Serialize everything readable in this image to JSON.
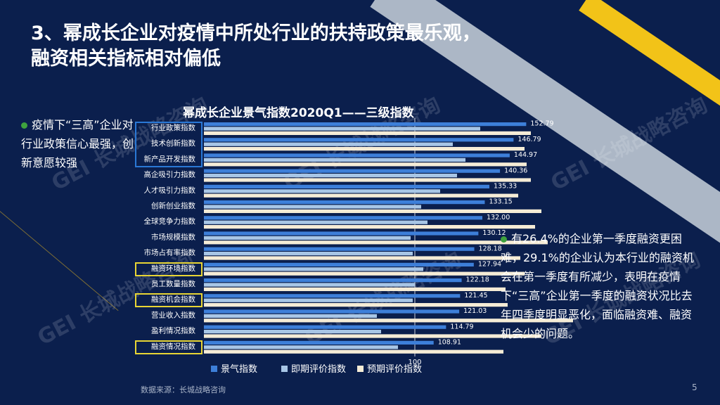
{
  "title": {
    "line1": "3、幂成长企业对疫情中所处行业的扶持政策最乐观，",
    "line2": "融资相关指标相对偏低"
  },
  "left_bullet": "疫情下“三高”企业对行业政策信心最强，创新意愿较强",
  "right_bullet": "有26.4%的企业第一季度融资更困难，29.1%的企业认为本行业的融资机会在第一季度有所减少，表明在疫情下“三高”企业第一季度的融资状况比去年四季度明显恶化，面临融资难、融资机会少的问题。",
  "source": "数据来源：长城战略咨询",
  "page_number": "5",
  "watermark": "GEI 长城战略咨询",
  "colors": {
    "background": "#0b1f4d",
    "series_1": "#3d7fd9",
    "series_2": "#a8c6e6",
    "series_3": "#f5ecd6",
    "highlight_blue": "#2a78d6",
    "highlight_yellow": "#e8d534",
    "bullet_dot": "#3ea23e"
  },
  "chart_data": {
    "type": "bar",
    "orientation": "horizontal",
    "title": "幂成长企业景气指数2020Q1——三级指数",
    "categories": [
      "行业政策指数",
      "技术创新指数",
      "新产品开发指数",
      "高企吸引力指数",
      "人才吸引力指数",
      "创新创业指数",
      "全球竞争力指数",
      "市场规模指数",
      "市场占有率指数",
      "融资环境指数",
      "员工数量指数",
      "融资机会指数",
      "营业收入指数",
      "盈利情况指数",
      "融资情况指数"
    ],
    "series": [
      {
        "name": "景气指数",
        "values": [
          152.79,
          146.79,
          144.97,
          140.36,
          135.33,
          133.15,
          132.0,
          130.12,
          128.18,
          127.94,
          122.18,
          121.45,
          121.03,
          114.79,
          108.91
        ]
      },
      {
        "name": "即期评价指数",
        "values": [
          131,
          118,
          124,
          120,
          112,
          103,
          106,
          98,
          99,
          104,
          100,
          99,
          82,
          84,
          92
        ]
      },
      {
        "name": "预期评价指数",
        "values": [
          155,
          152,
          153,
          155,
          149,
          160,
          157,
          163,
          150,
          152,
          143,
          144,
          175,
          160,
          142
        ]
      }
    ],
    "data_labels": [
      "152.79",
      "146.79",
      "144.97",
      "140.36",
      "135.33",
      "133.15",
      "132.00",
      "130.12",
      "128.18",
      "127.94",
      "122.18",
      "121.45",
      "121.03",
      "114.79",
      "108.91"
    ],
    "reference_line": {
      "value": 100,
      "label": "100"
    },
    "highlighted_blue": [
      "行业政策指数",
      "技术创新指数",
      "新产品开发指数"
    ],
    "highlighted_yellow": [
      "融资环境指数",
      "融资机会指数",
      "融资情况指数"
    ],
    "legend_position": "bottom",
    "grid": false
  }
}
